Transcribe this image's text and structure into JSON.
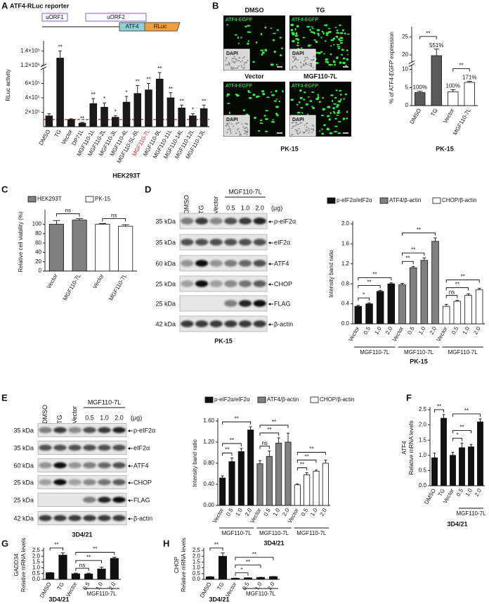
{
  "panel_letters": [
    "A",
    "B",
    "C",
    "D",
    "E",
    "F",
    "G",
    "H"
  ],
  "figure": {
    "A": {
      "title": "ATF4-RLuc reporter",
      "construct": [
        "uORF1",
        "uORF2",
        "ATF4",
        "RLuc"
      ]
    },
    "B": {
      "images": [
        {
          "label": "DMSO",
          "channel": "ATF4-EGFP",
          "inset": "DAPI"
        },
        {
          "label": "TG",
          "channel": "ATF4-EGFP",
          "inset": "DAPI"
        },
        {
          "label": "Vector",
          "channel": "ATF4-EGFP",
          "inset": "DAPI"
        },
        {
          "label": "MGF110-7L",
          "channel": "ATF4-EGFP",
          "inset": "DAPI"
        }
      ],
      "cell": "PK-15"
    },
    "blots": [
      {
        "lanes": [
          "DMSO",
          "TG",
          "Vector",
          "0.5",
          "1.0",
          "2.0"
        ],
        "group": "MGF110-7L",
        "unit": "(μg)",
        "rows": [
          {
            "size": "35 kDa",
            "protein": "p-eIF2α"
          },
          {
            "size": "35 kDa",
            "protein": "eIF2α"
          },
          {
            "size": "60 kDa",
            "protein": "ATF4"
          },
          {
            "size": "25 kDa",
            "protein": "CHOP"
          },
          {
            "size": "25 kDa",
            "protein": "FLAG"
          },
          {
            "size": "42 kDa",
            "protein": "β-actin"
          }
        ],
        "cell": "PK-15"
      },
      {
        "lanes": [
          "DMSO",
          "TG",
          "Vector",
          "0.5",
          "1.0",
          "2.0"
        ],
        "group": "MGF110-7L",
        "unit": "(μg)",
        "rows": [
          {
            "size": "35 kDa",
            "protein": "p-eIF2α"
          },
          {
            "size": "35 kDa",
            "protein": "eIF2α"
          },
          {
            "size": "60 kDa",
            "protein": "ATF4"
          },
          {
            "size": "25 kDa",
            "protein": "CHOP"
          },
          {
            "size": "25 kDa",
            "protein": "FLAG"
          },
          {
            "size": "42 kDa",
            "protein": "β-actin"
          }
        ],
        "cell": "3D4/21"
      }
    ]
  },
  "chart_data": [
    {
      "type": "bar",
      "ylabel": "RLuc activity",
      "xlabel": "HEK293T",
      "categories": [
        "DMSO",
        "TG",
        "Vector",
        "DP71L",
        "MGF110-1L",
        "MGF110-2L",
        "MGF110-3L",
        "MGF110-4L",
        "MGF110-5L-6L",
        "MGF110-7L",
        "MGF110-9L",
        "MGF110-11L",
        "MGF110-14L",
        "MGF110-12L",
        "MGF110-13L"
      ],
      "values": [
        150000,
        1300000,
        100000,
        50000,
        320000,
        270000,
        130000,
        340000,
        460000,
        510000,
        660000,
        400000,
        260000,
        150000,
        250000
      ],
      "errors": [
        30000,
        100000,
        10000,
        10000,
        70000,
        60000,
        20000,
        80000,
        110000,
        90000,
        90000,
        70000,
        40000,
        30000,
        50000
      ],
      "significance": [
        null,
        "**",
        null,
        "**",
        "**",
        "*",
        "*",
        "*",
        "**",
        "**",
        "**",
        "**",
        "**",
        "*",
        "**"
      ],
      "color": "#1a1a1a",
      "highlight": "MGF110-7L",
      "highlight_color": "#e02020",
      "reference_line": 100000,
      "reference_color": "#e02020",
      "ylim": [
        0,
        1500000
      ],
      "axis_break": [
        800000,
        1150000
      ],
      "yticks": [
        {
          "value": 200000,
          "label": "2×10⁵"
        },
        {
          "value": 400000,
          "label": "4×10⁵"
        },
        {
          "value": 600000,
          "label": "6×10⁵"
        },
        {
          "value": 1200000,
          "label": "1.2×10⁶"
        },
        {
          "value": 1400000,
          "label": "1.4×10⁶"
        }
      ]
    },
    {
      "type": "bar",
      "ylabel": "% of ATF4-EGFP expression",
      "xlabel": "PK-15",
      "categories": [
        "DMSO",
        "TG",
        "Vector",
        "MGF110-7L"
      ],
      "values": [
        3.6,
        19.8,
        3.8,
        6.4
      ],
      "errors": [
        0.4,
        1.8,
        0.6,
        0.3
      ],
      "colors": [
        "#5a5a5a",
        "#5a5a5a",
        "#ffffff",
        "#ffffff"
      ],
      "annotations": [
        "100%",
        "551%",
        "100%",
        "171%"
      ],
      "ylim": [
        0,
        27
      ],
      "axis_break": [
        11,
        17
      ],
      "yticks": [
        0,
        5,
        10,
        20,
        25
      ],
      "brackets": [
        {
          "from": 0,
          "to": 1,
          "label": "**"
        },
        {
          "from": 2,
          "to": 3,
          "label": "**"
        }
      ]
    },
    {
      "type": "bar",
      "ylabel": "Relative cell viability (%)",
      "categories": [
        "Vector",
        "MGF110-7L",
        "Vector",
        "MGF110-7L"
      ],
      "series": [
        {
          "name": "HEK293T",
          "color": "#808080",
          "values": [
            100,
            109,
            null,
            null
          ],
          "errors": [
            8,
            3,
            null,
            null
          ]
        },
        {
          "name": "PK-15",
          "color": "#ffffff",
          "values": [
            null,
            null,
            100,
            96
          ],
          "errors": [
            null,
            null,
            1.5,
            3
          ]
        }
      ],
      "ylim": [
        0,
        125
      ],
      "yticks": [
        0,
        20,
        40,
        60,
        80,
        100
      ],
      "brackets": [
        {
          "from": 0,
          "to": 1,
          "label": "ns"
        },
        {
          "from": 2,
          "to": 3,
          "label": "ns"
        }
      ]
    },
    {
      "type": "bar",
      "ylabel": "Intensity band ratio",
      "xlabel": "PK-15",
      "categories": [
        "Vector",
        "0.5",
        "1.0",
        "2.0",
        "Vector",
        "0.5",
        "1.0",
        "2.0",
        "Vector",
        "0.5",
        "1.0",
        "2.0"
      ],
      "series": [
        {
          "name": "p-eIF2α/eIF2α",
          "color": "#111111",
          "values": [
            0.35,
            0.4,
            0.65,
            0.8,
            null,
            null,
            null,
            null,
            null,
            null,
            null,
            null
          ],
          "errors": [
            0.02,
            0.02,
            0.02,
            0.02,
            null,
            null,
            null,
            null,
            null,
            null,
            null,
            null
          ]
        },
        {
          "name": "ATF4/β-actin",
          "color": "#808080",
          "values": [
            null,
            null,
            null,
            null,
            0.78,
            1.12,
            1.27,
            1.65,
            null,
            null,
            null,
            null
          ],
          "errors": [
            null,
            null,
            null,
            null,
            0.03,
            0.03,
            0.05,
            0.07,
            null,
            null,
            null,
            null
          ]
        },
        {
          "name": "CHOP/β-actin",
          "color": "#ffffff",
          "values": [
            null,
            null,
            null,
            null,
            null,
            null,
            null,
            null,
            0.35,
            0.45,
            0.57,
            0.68
          ],
          "errors": [
            null,
            null,
            null,
            null,
            null,
            null,
            null,
            null,
            0.04,
            0.02,
            0.03,
            0.03
          ]
        }
      ],
      "groups": [
        {
          "label": "MGF110-7L",
          "from": 0,
          "to": 3
        },
        {
          "label": "MGF110-7L",
          "from": 4,
          "to": 7
        },
        {
          "label": "MGF110-7L",
          "from": 8,
          "to": 11
        }
      ],
      "ylim": [
        0,
        2
      ],
      "yticks": [
        {
          "value": 0,
          "label": "0.0"
        },
        0.4,
        0.8,
        1.2,
        1.6,
        {
          "value": 2,
          "label": "2.0"
        }
      ],
      "brackets": [
        {
          "from": 0,
          "to": 1,
          "label": "*"
        },
        {
          "from": 0,
          "to": 2,
          "label": "**"
        },
        {
          "from": 0,
          "to": 3,
          "label": "**"
        },
        {
          "from": 4,
          "to": 5,
          "label": "**"
        },
        {
          "from": 4,
          "to": 6,
          "label": "**"
        },
        {
          "from": 4,
          "to": 7,
          "label": "**"
        },
        {
          "from": 8,
          "to": 9,
          "label": "ns"
        },
        {
          "from": 8,
          "to": 10,
          "label": "**"
        },
        {
          "from": 8,
          "to": 11,
          "label": "**"
        }
      ]
    },
    {
      "type": "bar",
      "ylabel": "Intensity band ratio",
      "xlabel": "3D4/21",
      "categories": [
        "Vector",
        "0.5",
        "1.0",
        "2.0",
        "Vector",
        "0.5",
        "1.0",
        "2.0",
        "Vector",
        "0.5",
        "1.0",
        "2.0"
      ],
      "series": [
        {
          "name": "p-eIF2α/eIF2α",
          "color": "#111111",
          "values": [
            0.52,
            0.83,
            1.02,
            1.43,
            null,
            null,
            null,
            null,
            null,
            null,
            null,
            null
          ],
          "errors": [
            0.04,
            0.07,
            0.06,
            0.06,
            null,
            null,
            null,
            null,
            null,
            null,
            null,
            null
          ]
        },
        {
          "name": "ATF4/β-actin",
          "color": "#808080",
          "values": [
            null,
            null,
            null,
            null,
            0.79,
            0.93,
            1.18,
            1.2,
            null,
            null,
            null,
            null
          ],
          "errors": [
            null,
            null,
            null,
            null,
            0.06,
            0.1,
            0.1,
            0.17,
            null,
            null,
            null,
            null
          ]
        },
        {
          "name": "CHOP/β-actin",
          "color": "#ffffff",
          "values": [
            null,
            null,
            null,
            null,
            null,
            null,
            null,
            null,
            0.39,
            0.58,
            0.65,
            0.8
          ],
          "errors": [
            null,
            null,
            null,
            null,
            null,
            null,
            null,
            null,
            0.02,
            0.04,
            0.02,
            0.06
          ]
        }
      ],
      "groups": [
        {
          "label": "MGF110-7L",
          "from": 0,
          "to": 3
        },
        {
          "label": "MGF110-7L",
          "from": 4,
          "to": 7
        },
        {
          "label": "MGF110-7L",
          "from": 8,
          "to": 11
        }
      ],
      "ylim": [
        0,
        1.6
      ],
      "yticks": [
        {
          "value": 0,
          "label": "0.00"
        },
        {
          "value": 0.4,
          "label": "0.40"
        },
        {
          "value": 0.8,
          "label": "0.80"
        },
        {
          "value": 1.2,
          "label": "1.20"
        },
        {
          "value": 1.6,
          "label": "1.60"
        }
      ],
      "brackets": [
        {
          "from": 0,
          "to": 1,
          "label": "**"
        },
        {
          "from": 0,
          "to": 2,
          "label": "**"
        },
        {
          "from": 0,
          "to": 3,
          "label": "**"
        },
        {
          "from": 4,
          "to": 5,
          "label": "ns"
        },
        {
          "from": 4,
          "to": 6,
          "label": "**"
        },
        {
          "from": 4,
          "to": 7,
          "label": "**"
        },
        {
          "from": 8,
          "to": 9,
          "label": "**"
        },
        {
          "from": 8,
          "to": 10,
          "label": "**"
        },
        {
          "from": 8,
          "to": 11,
          "label": "**"
        }
      ]
    },
    {
      "type": "bar",
      "ylabel": "Relative mRNA levels",
      "gene": "ATF4",
      "xlabel": "3D4/21",
      "categories": [
        "DMSO",
        "TG",
        "Vector",
        "0.5",
        "1.0",
        "2.0"
      ],
      "values": [
        0.92,
        2.22,
        1.0,
        1.25,
        1.28,
        2.1
      ],
      "errors": [
        0.15,
        0.12,
        0.1,
        0.15,
        0.08,
        0.1
      ],
      "color": "#111111",
      "groups": [
        {
          "label": "MGF110-7L",
          "from": 3,
          "to": 5
        }
      ],
      "ylim": [
        0,
        2.5
      ],
      "yticks": [
        {
          "value": 0,
          "label": "0.0"
        },
        0.5,
        {
          "value": 1,
          "label": "1.0"
        },
        1.5,
        {
          "value": 2,
          "label": "2.0"
        },
        2.5
      ],
      "brackets": [
        {
          "from": 0,
          "to": 1,
          "label": "**"
        },
        {
          "from": 2,
          "to": 3,
          "label": "*"
        },
        {
          "from": 2,
          "to": 4,
          "label": "**"
        },
        {
          "from": 2,
          "to": 5,
          "label": "**"
        }
      ]
    },
    {
      "type": "bar",
      "ylabel": "Relative mRNA levels",
      "gene": "GADD34",
      "xlabel": "3D4/21",
      "categories": [
        "DMSO",
        "TG",
        "Vector",
        "0.5",
        "1.0",
        "2.0"
      ],
      "values": [
        0.57,
        2.1,
        0.48,
        0.47,
        0.9,
        1.82
      ],
      "errors": [
        0.02,
        0.2,
        0.06,
        0.07,
        0.15,
        0.1
      ],
      "color": "#111111",
      "groups": [
        {
          "label": "MGF110-7L",
          "from": 3,
          "to": 5
        }
      ],
      "ylim": [
        0,
        2.5
      ],
      "yticks": [
        {
          "value": 0,
          "label": "0.0"
        },
        0.5,
        {
          "value": 1,
          "label": "1.0"
        },
        1.5,
        {
          "value": 2,
          "label": "2.0"
        },
        2.5
      ],
      "brackets": [
        {
          "from": 0,
          "to": 1,
          "label": "**"
        },
        {
          "from": 2,
          "to": 3,
          "label": "ns"
        },
        {
          "from": 2,
          "to": 4,
          "label": "**"
        },
        {
          "from": 2,
          "to": 5,
          "label": "**"
        }
      ]
    },
    {
      "type": "bar",
      "ylabel": "Relative mRNA levels",
      "gene": "CHOP",
      "xlabel": "3D4/21",
      "categories": [
        "DMSO",
        "TG",
        "Vector",
        "0.5",
        "1.0",
        "2.0"
      ],
      "values": [
        0.22,
        2.0,
        0.1,
        0.13,
        0.17,
        0.24
      ],
      "errors": [
        0.02,
        0.3,
        0.01,
        0.01,
        0.01,
        0.01
      ],
      "color": "#111111",
      "groups": [
        {
          "label": "MGF110-7L",
          "from": 3,
          "to": 5
        }
      ],
      "ylim": [
        0,
        2.5
      ],
      "yticks": [
        {
          "value": 0,
          "label": "0.0"
        },
        0.5,
        {
          "value": 1,
          "label": "1.0"
        },
        1.5,
        {
          "value": 2,
          "label": "2.0"
        },
        2.5
      ],
      "brackets": [
        {
          "from": 0,
          "to": 1,
          "label": "**"
        },
        {
          "from": 2,
          "to": 3,
          "label": "*"
        },
        {
          "from": 2,
          "to": 4,
          "label": "**"
        },
        {
          "from": 2,
          "to": 5,
          "label": "**"
        }
      ]
    }
  ]
}
